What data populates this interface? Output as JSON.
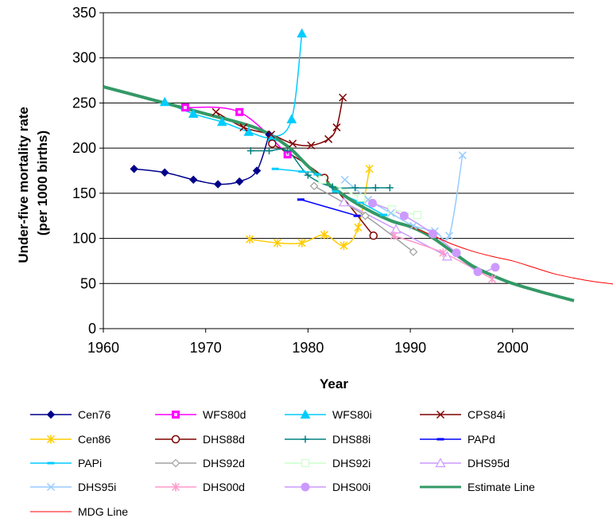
{
  "chart_data": {
    "type": "line",
    "xlabel": "Year",
    "ylabel": [
      "Under-five mortality rate",
      "(per 1000 births)"
    ],
    "xlim": [
      1960,
      2006
    ],
    "ylim": [
      0,
      350
    ],
    "xticks": [
      1960,
      1970,
      1980,
      1990,
      2000
    ],
    "yticks": [
      0,
      50,
      100,
      150,
      200,
      250,
      300,
      350
    ],
    "grid": "horizontal",
    "legend_position": "bottom",
    "series": [
      {
        "name": "Cen76",
        "color": "#00008b",
        "marker": "diamond",
        "points": [
          [
            1963,
            177
          ],
          [
            1966,
            173
          ],
          [
            1968.8,
            165
          ],
          [
            1971.2,
            160
          ],
          [
            1973.3,
            163
          ],
          [
            1975,
            175
          ],
          [
            1976.2,
            215
          ]
        ]
      },
      {
        "name": "WFS80d",
        "color": "#ff00ff",
        "marker": "square",
        "points": [
          [
            1968,
            245
          ],
          [
            1973.3,
            240
          ],
          [
            1978,
            193
          ]
        ]
      },
      {
        "name": "WFS80i",
        "color": "#00ccff",
        "marker": "triangle",
        "points": [
          [
            1966,
            251
          ],
          [
            1968.8,
            238
          ],
          [
            1971.6,
            229
          ],
          [
            1974.2,
            218
          ],
          [
            1976.5,
            212
          ],
          [
            1978.4,
            232
          ],
          [
            1979.4,
            327
          ]
        ]
      },
      {
        "name": "CPS84i",
        "color": "#800000",
        "marker": "x",
        "points": [
          [
            1971,
            240
          ],
          [
            1973.7,
            223
          ],
          [
            1976.4,
            215
          ],
          [
            1978.5,
            205
          ],
          [
            1980.3,
            203
          ],
          [
            1982,
            210
          ],
          [
            1982.8,
            223
          ],
          [
            1983.4,
            256
          ]
        ]
      },
      {
        "name": "Cen86",
        "color": "#ffcc00",
        "marker": "asterisk",
        "points": [
          [
            1974.3,
            99
          ],
          [
            1977,
            95
          ],
          [
            1979.4,
            95
          ],
          [
            1981.6,
            104
          ],
          [
            1983.5,
            92
          ],
          [
            1984.9,
            112
          ],
          [
            1986,
            177
          ]
        ]
      },
      {
        "name": "DHS88d",
        "color": "#800000",
        "marker": "circle",
        "points": [
          [
            1976.5,
            205
          ],
          [
            1981.6,
            167
          ],
          [
            1986.4,
            103
          ]
        ]
      },
      {
        "name": "DHS88i",
        "color": "#008080",
        "marker": "plus",
        "points": [
          [
            1974.4,
            197
          ],
          [
            1976.2,
            197
          ],
          [
            1978,
            197
          ],
          [
            1980,
            170
          ],
          [
            1982.4,
            157
          ],
          [
            1984.6,
            156
          ],
          [
            1986.6,
            156
          ],
          [
            1988,
            156
          ]
        ]
      },
      {
        "name": "PAPd",
        "color": "#0000ff",
        "marker": "dash",
        "points": [
          [
            1979.3,
            143
          ],
          [
            1984.8,
            125
          ]
        ]
      },
      {
        "name": "PAPi",
        "color": "#00ccff",
        "marker": "dash",
        "points": [
          [
            1976.8,
            177
          ],
          [
            1979.4,
            174
          ],
          [
            1980.9,
            171
          ],
          [
            1982.7,
            152
          ],
          [
            1985.1,
            140
          ],
          [
            1987.4,
            126
          ]
        ]
      },
      {
        "name": "DHS92d",
        "color": "#a0a0a0",
        "marker": "diamond-open",
        "points": [
          [
            1980.6,
            158
          ],
          [
            1985.6,
            125
          ],
          [
            1990.3,
            85
          ]
        ]
      },
      {
        "name": "DHS92i",
        "color": "#ccffcc",
        "marker": "square-open",
        "points": [
          [
            1981.4,
            165
          ],
          [
            1985.2,
            145
          ],
          [
            1988.2,
            132
          ],
          [
            1990.7,
            126
          ]
        ]
      },
      {
        "name": "DHS95d",
        "color": "#cc99ff",
        "marker": "triangle-open",
        "points": [
          [
            1983.5,
            140
          ],
          [
            1988.6,
            110
          ],
          [
            1993.6,
            80
          ]
        ]
      },
      {
        "name": "DHS95i",
        "color": "#99ccff",
        "marker": "x",
        "points": [
          [
            1983.6,
            165
          ],
          [
            1985.9,
            143
          ],
          [
            1988.1,
            128
          ],
          [
            1990.3,
            114
          ],
          [
            1992.4,
            108
          ],
          [
            1993.8,
            103
          ],
          [
            1995.1,
            192
          ]
        ]
      },
      {
        "name": "DHS00d",
        "color": "#ff99cc",
        "marker": "asterisk",
        "points": [
          [
            1988.4,
            103
          ],
          [
            1993.2,
            84
          ],
          [
            1998,
            55
          ]
        ]
      },
      {
        "name": "DHS00i",
        "color": "#cc99ff",
        "marker": "circle-filled",
        "points": [
          [
            1986.3,
            139
          ],
          [
            1989.4,
            125
          ],
          [
            1992.2,
            105
          ],
          [
            1994.5,
            84
          ],
          [
            1996.6,
            63
          ],
          [
            1998.3,
            68
          ]
        ]
      },
      {
        "name": "Estimate Line",
        "color": "#339966",
        "marker": "none",
        "width": 4,
        "points": [
          [
            1960,
            268
          ],
          [
            1965,
            253
          ],
          [
            1970,
            238
          ],
          [
            1975,
            222
          ],
          [
            1978,
            202
          ],
          [
            1980,
            180
          ],
          [
            1982,
            160
          ],
          [
            1985,
            137
          ],
          [
            1988,
            120
          ],
          [
            1990,
            113
          ],
          [
            1992,
            102
          ],
          [
            1994,
            86
          ],
          [
            1996,
            70
          ],
          [
            1998,
            59
          ],
          [
            2000,
            50
          ],
          [
            2003,
            40
          ],
          [
            2006,
            31
          ]
        ]
      },
      {
        "name": "MDG Line",
        "color": "#ff0000",
        "marker": "none",
        "width": 1,
        "points": [
          [
            1990,
            113
          ],
          [
            1992,
            104
          ],
          [
            1994,
            94
          ],
          [
            1996,
            86
          ],
          [
            1998,
            80
          ],
          [
            2000,
            75
          ],
          [
            2002,
            68
          ],
          [
            2004,
            61
          ],
          [
            2006,
            56
          ],
          [
            2008,
            52
          ],
          [
            2010,
            49
          ],
          [
            2011.3,
            44
          ]
        ]
      }
    ]
  }
}
